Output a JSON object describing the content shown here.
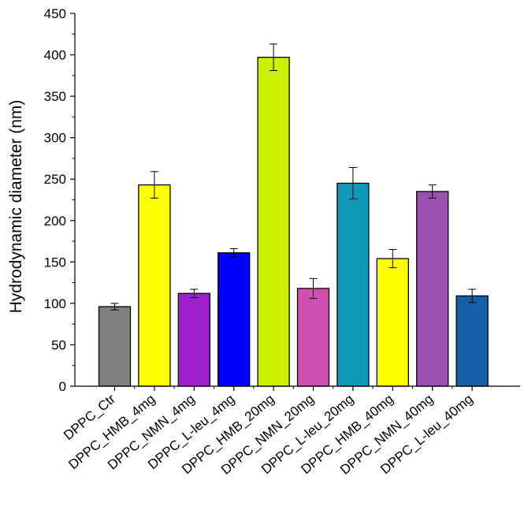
{
  "chart_data": {
    "type": "bar",
    "title": "",
    "xlabel": "",
    "ylabel": "Hydrodynamic diameter (nm)",
    "ylim": [
      0,
      450
    ],
    "yticks": [
      0,
      50,
      100,
      150,
      200,
      250,
      300,
      350,
      400,
      450
    ],
    "grid": false,
    "categories": [
      "DPPC_Ctr",
      "DPPC_HMB_4mg",
      "DPPC_NMN_4mg",
      "DPPC_L-leu_4mg",
      "DPPC_HMB_20mg",
      "DPPC_NMN_20mg",
      "DPPC_L-leu_20mg",
      "DPPC_HMB_40mg",
      "DPPC_NMN_40mg",
      "DPPC_L-leu_40mg"
    ],
    "values": [
      96,
      243,
      112,
      161,
      397,
      118,
      245,
      154,
      235,
      109
    ],
    "errors": [
      4,
      16,
      5,
      5,
      16,
      12,
      19,
      11,
      8,
      8
    ],
    "colors": [
      "#808080",
      "#ffff00",
      "#a020d0",
      "#0000ff",
      "#ccf000",
      "#d04fb0",
      "#0f98b8",
      "#ffff00",
      "#9a50b0",
      "#1560a8"
    ]
  }
}
